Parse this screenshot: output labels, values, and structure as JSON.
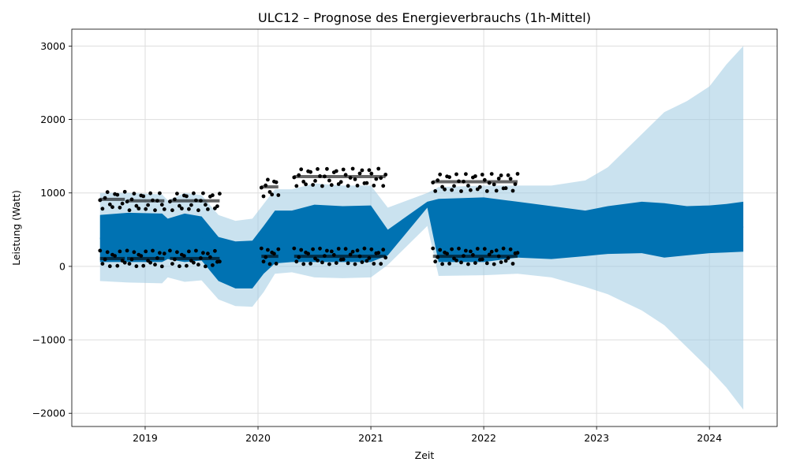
{
  "chart_data": {
    "type": "line",
    "title": "ULC12 – Prognose des Energieverbrauchs (1h-Mittel)",
    "xlabel": "Zeit",
    "ylabel": "Leistung (Watt)",
    "xlim": [
      2018.35,
      2024.6
    ],
    "ylim": [
      -2180,
      3230
    ],
    "grid": true,
    "x_ticks": [
      2019,
      2020,
      2021,
      2022,
      2023,
      2024
    ],
    "x_tick_labels": [
      "2019",
      "2020",
      "2021",
      "2022",
      "2023",
      "2024"
    ],
    "y_ticks": [
      -2000,
      -1000,
      0,
      1000,
      2000,
      3000
    ],
    "y_tick_labels": [
      "−2000",
      "−1000",
      "0",
      "1000",
      "2000",
      "3000"
    ],
    "colors": {
      "forecast": "#0072B2",
      "interval": "#9ecae1",
      "observed": "#000000",
      "grid": "#dddddd"
    },
    "series": [
      {
        "kind": "forecast_band",
        "x": [
          2018.6,
          2018.85,
          2019.15,
          2019.2,
          2019.35,
          2019.5,
          2019.65,
          2019.8,
          2019.95,
          2020.05,
          2020.15,
          2020.3,
          2020.5,
          2020.75,
          2021.0,
          2021.15,
          2021.5,
          2021.6,
          2022.0,
          2022.3,
          2022.6,
          2022.9,
          2023.1,
          2023.4,
          2023.6,
          2023.8,
          2024.0,
          2024.15,
          2024.3
        ],
        "upper": [
          700,
          730,
          720,
          650,
          720,
          680,
          400,
          340,
          350,
          550,
          760,
          760,
          840,
          820,
          830,
          500,
          880,
          920,
          940,
          880,
          820,
          760,
          820,
          880,
          860,
          820,
          830,
          850,
          880
        ],
        "lower": [
          60,
          60,
          60,
          100,
          60,
          80,
          -200,
          -300,
          -300,
          -100,
          40,
          60,
          60,
          60,
          60,
          150,
          800,
          60,
          60,
          120,
          100,
          140,
          170,
          180,
          120,
          150,
          180,
          190,
          200
        ],
        "upper_ci": [
          1000,
          1000,
          980,
          900,
          1000,
          970,
          700,
          620,
          650,
          850,
          1050,
          1050,
          1130,
          1100,
          1100,
          800,
          1000,
          1080,
          1100,
          1100,
          1100,
          1170,
          1350,
          1800,
          2100,
          2250,
          2450,
          2750,
          3000
        ],
        "lower_ci": [
          -200,
          -220,
          -230,
          -150,
          -210,
          -190,
          -450,
          -540,
          -550,
          -350,
          -100,
          -80,
          -150,
          -160,
          -150,
          20,
          550,
          -130,
          -120,
          -100,
          -150,
          -280,
          -380,
          -600,
          -800,
          -1100,
          -1400,
          -1650,
          -1950
        ]
      },
      {
        "kind": "observed_segments",
        "segments": [
          {
            "start": 2018.6,
            "end": 2018.82,
            "min": 0,
            "max": 1020
          },
          {
            "start": 2018.84,
            "end": 2019.17,
            "min": 0,
            "max": 1000
          },
          {
            "start": 2019.22,
            "end": 2019.66,
            "min": 0,
            "max": 1000
          },
          {
            "start": 2020.03,
            "end": 2020.18,
            "min": 30,
            "max": 1190
          },
          {
            "start": 2020.32,
            "end": 2021.13,
            "min": 30,
            "max": 1330
          },
          {
            "start": 2021.55,
            "end": 2022.3,
            "min": 30,
            "max": 1260
          }
        ]
      }
    ]
  }
}
